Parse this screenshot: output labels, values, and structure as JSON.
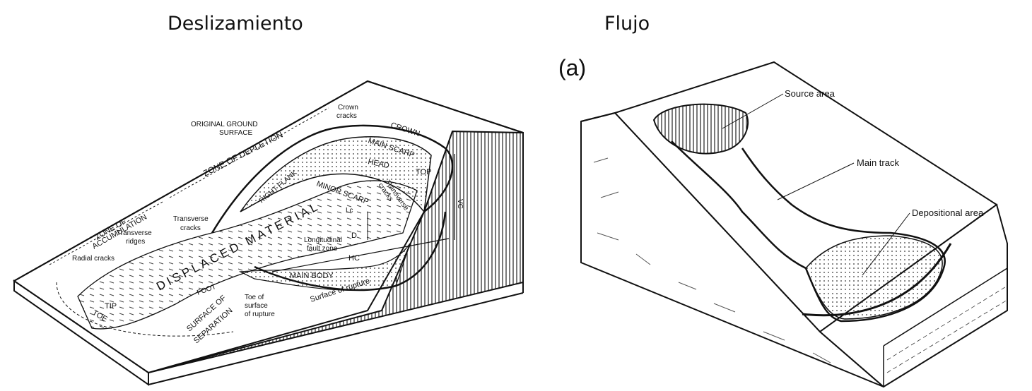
{
  "headings": {
    "left": "Deslizamiento",
    "right": "Flujo"
  },
  "flow": {
    "panel_tag": "(a)",
    "labels": {
      "source_area": "Source area",
      "main_track": "Main track",
      "depositional_area": "Depositional area"
    }
  },
  "slide": {
    "labels": {
      "original_ground_surface_1": "ORIGINAL GROUND",
      "original_ground_surface_2": "SURFACE",
      "zone_of_depletion": "ZONE OF DEPLETION",
      "crown_cracks_1": "Crown",
      "crown_cracks_2": "cracks",
      "crown": "CROWN",
      "main_scarp": "MAIN SCARP",
      "head": "HEAD",
      "top": "TOP",
      "right_flank": "RIGHT FLANK",
      "minor_scarp": "MINOR SCARP",
      "transverse_cracks_upper_1": "Transverse",
      "transverse_cracks_upper_2": "cracks",
      "vc": "VC",
      "zone_of_accumulation_1": "ZONE OF",
      "zone_of_accumulation_2": "ACCUMULATION",
      "transverse_ridges_1": "Transverse",
      "transverse_ridges_2": "ridges",
      "transverse_cracks_lower_1": "Transverse",
      "transverse_cracks_lower_2": "cracks",
      "displaced_material": "DISPLACED MATERIAL",
      "lc": "Lc",
      "d": "D",
      "longitudinal_fault_zone_1": "Longitudinal",
      "longitudinal_fault_zone_2": "fault zone",
      "radial_cracks": "Radial cracks",
      "hc": "HC",
      "main_body": "MAIN BODY",
      "foot": "FOOT",
      "tip": "TIP",
      "toe": "TOE",
      "toe_of_surface_1": "Toe of",
      "toe_of_surface_2": "surface",
      "toe_of_surface_3": "of rupture",
      "surface_of_rupture": "Surface of rupture",
      "surface_of_separation_1": "SURFACE OF",
      "surface_of_separation_2": "SEPARATION"
    }
  }
}
